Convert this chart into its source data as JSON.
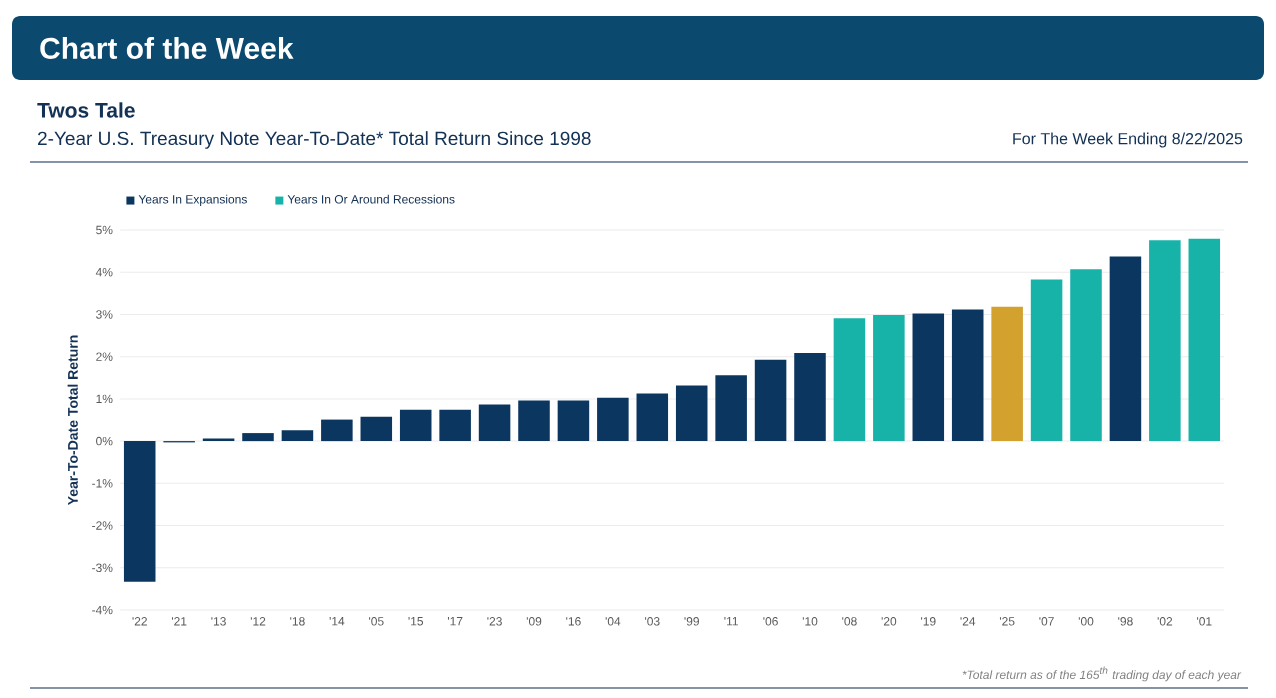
{
  "chart_data": {
    "type": "bar",
    "title": "Twos Tale",
    "subtitle": "2-Year U.S. Treasury Note Year-To-Date* Total Return Since 1998",
    "ylabel": "Year-To-Date Total Return",
    "annotations": [
      "Chart of the Week",
      "For The Week Ending 8/22/2025",
      "*Total return as of the 165$^{th}$ trading day of each year"
    ],
    "categories": [
      "'22",
      "'21",
      "'13",
      "'12",
      "'18",
      "'14",
      "'05",
      "'15",
      "'17",
      "'23",
      "'09",
      "'16",
      "'04",
      "'03",
      "'99",
      "'11",
      "'06",
      "'10",
      "'08",
      "'20",
      "'19",
      "'24",
      "'25",
      "'07",
      "'00",
      "'98",
      "'02",
      "'01"
    ],
    "series": [
      {
        "name": "Years In Expansions",
        "color": "#0b365f",
        "values": [
          -3.33,
          -0.03,
          0.06,
          0.19,
          0.26,
          0.51,
          0.58,
          0.74,
          0.74,
          0.87,
          0.96,
          0.96,
          1.03,
          1.13,
          1.32,
          1.56,
          1.93,
          2.09,
          null,
          null,
          3.02,
          3.12,
          null,
          null,
          null,
          4.37,
          null,
          null
        ]
      },
      {
        "name": "Years In Or Around Recessions",
        "color": "#17b3a9",
        "values": [
          null,
          null,
          null,
          null,
          null,
          null,
          null,
          null,
          null,
          null,
          null,
          null,
          null,
          null,
          null,
          null,
          null,
          null,
          2.91,
          2.99,
          null,
          null,
          null,
          3.83,
          4.07,
          null,
          4.76,
          4.79
        ]
      },
      {
        "color": "#d3a12e",
        "values": [
          null,
          null,
          null,
          null,
          null,
          null,
          null,
          null,
          null,
          null,
          null,
          null,
          null,
          null,
          null,
          null,
          null,
          null,
          null,
          null,
          null,
          null,
          3.18,
          null,
          null,
          null,
          null,
          null
        ]
      }
    ],
    "ylim": [
      -4,
      5
    ],
    "yticks": [
      {
        "value": -4,
        "label": "-4%"
      },
      {
        "value": -3,
        "label": "-3%"
      },
      {
        "value": -2,
        "label": "-2%"
      },
      {
        "value": -1,
        "label": "-1%"
      },
      {
        "value": 0,
        "label": "0%"
      },
      {
        "value": 1,
        "label": "1%"
      },
      {
        "value": 2,
        "label": "2%"
      },
      {
        "value": 3,
        "label": "3%"
      },
      {
        "value": 4,
        "label": "4%"
      },
      {
        "value": 5,
        "label": "5%"
      }
    ],
    "grid": "y",
    "legend": "top left"
  }
}
